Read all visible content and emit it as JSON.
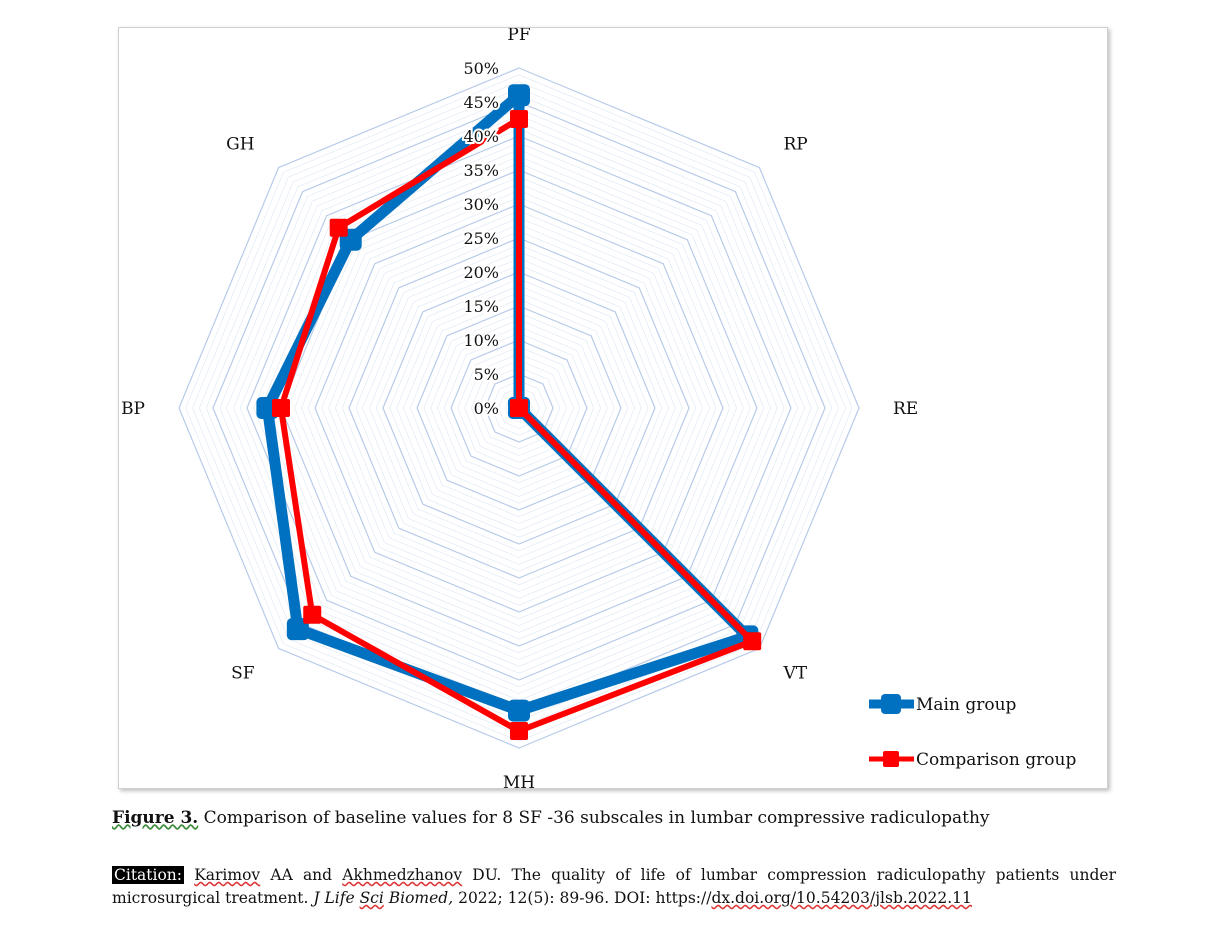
{
  "chart_data": {
    "type": "radar",
    "axes": [
      "PF",
      "RP",
      "RE",
      "VT",
      "MH",
      "SF",
      "BP",
      "GH"
    ],
    "tick_labels": [
      "0%",
      "5%",
      "10%",
      "15%",
      "20%",
      "25%",
      "30%",
      "35%",
      "40%",
      "45%",
      "50%"
    ],
    "range": [
      0,
      50
    ],
    "series": [
      {
        "name": "Main group",
        "color": "#0070C0",
        "values": [
          46,
          0,
          0,
          47.5,
          44.5,
          46,
          37,
          35
        ]
      },
      {
        "name": "Comparison group",
        "color": "#FF0000",
        "values": [
          42.5,
          0,
          0,
          48.5,
          47.5,
          43,
          35,
          37.5
        ]
      }
    ],
    "legend_position": "bottom-right",
    "grid_color": "#b4c7e7"
  },
  "caption": {
    "label": "Figure 3.",
    "text": " Comparison of baseline values for 8 SF -36 subscales in lumbar compressive radiculopathy"
  },
  "citation": {
    "tag": "Citation:",
    "author1": "Karimov",
    "t1": " AA and ",
    "author2": "Akhmedzhanov",
    "t2": " DU. The quality of life of lumbar compression radiculopathy patients under microsurgical treatment. ",
    "journal_a": "J Life ",
    "journal_b": "Sci",
    "journal_c": " Biomed,",
    "t3": " 2022; 12(5): 89-96. DOI: https://",
    "doi": "dx.doi.org/10.54203/jlsb.2022.11"
  }
}
